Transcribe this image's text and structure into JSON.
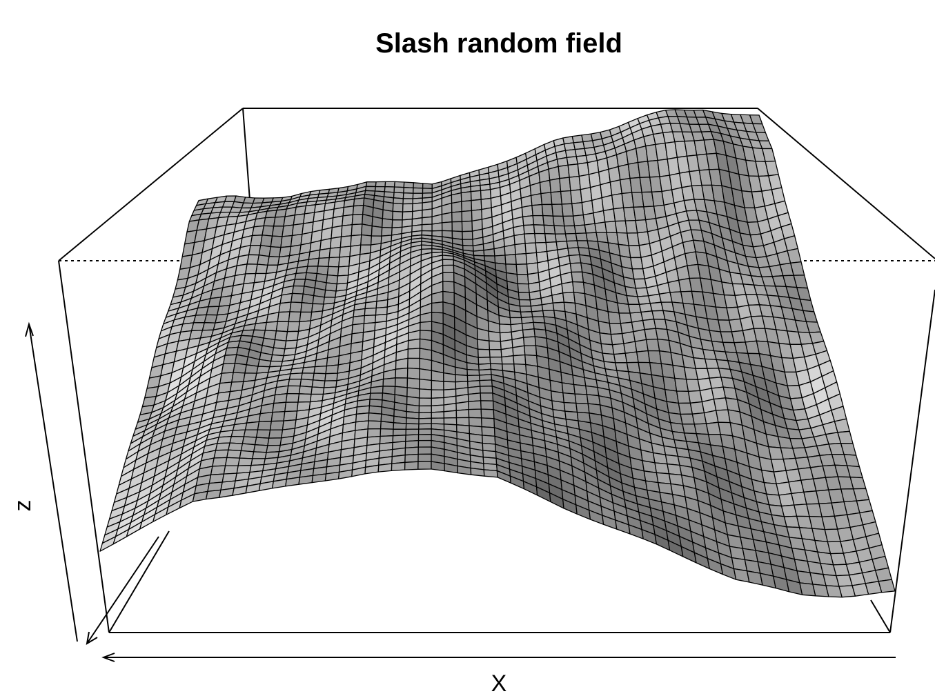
{
  "chart_data": {
    "type": "surface",
    "title": "Slash random field",
    "xlabel": "X",
    "zlabel": "z",
    "grid_resolution": [
      60,
      42
    ],
    "shading": "grayscale",
    "mesh_color": "#000000",
    "background": "#ffffff"
  }
}
